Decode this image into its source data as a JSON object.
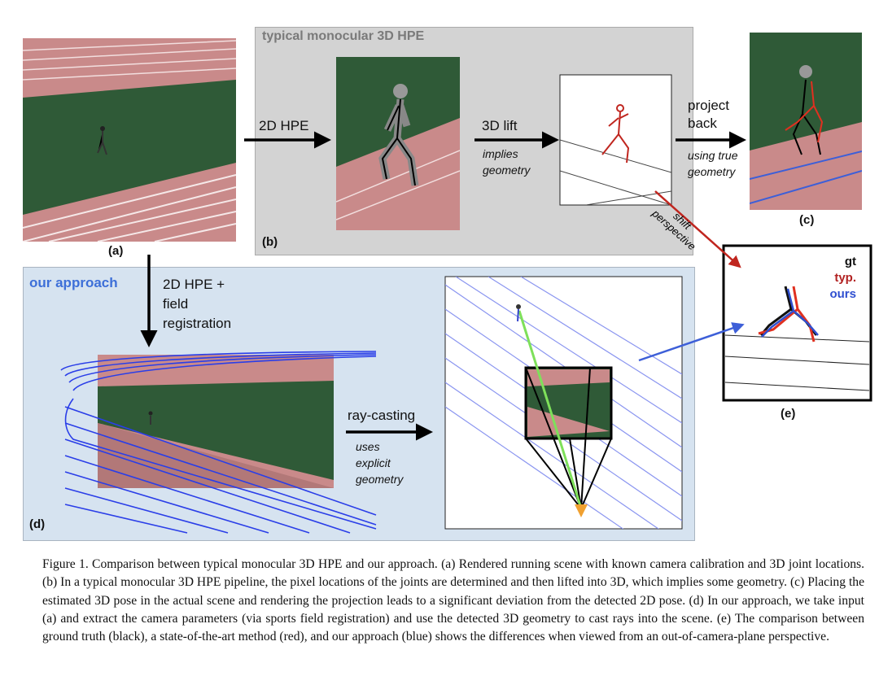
{
  "panels": {
    "a": {
      "label": "(a)"
    },
    "b": {
      "label": "(b)",
      "title": "typical monocular 3D HPE",
      "step1": "2D HPE",
      "step2": "3D lift",
      "step2_note": [
        "implies",
        "geometry"
      ]
    },
    "c": {
      "label": "(c)",
      "step": [
        "project",
        "back"
      ],
      "note": [
        "using true",
        "geometry"
      ]
    },
    "d": {
      "label": "(d)",
      "title": "our approach",
      "step1": [
        "2D HPE +",
        "field",
        "registration"
      ],
      "step2": "ray-casting",
      "step2_note": [
        "uses",
        "explicit",
        "geometry"
      ]
    },
    "e": {
      "label": "(e)",
      "legend": [
        {
          "text": "gt",
          "color": "#111111"
        },
        {
          "text": "typ.",
          "color": "#b22222"
        },
        {
          "text": "ours",
          "color": "#2f4fd0"
        }
      ],
      "shift_note": [
        "shift",
        "perspective"
      ]
    }
  },
  "colors": {
    "track": "#c98a8a",
    "grass": "#2f5a37",
    "panel_b": "#d3d3d3",
    "panel_d": "#d6e3f0",
    "accent_blue": "#3d5fd8",
    "accent_red": "#c0261f"
  },
  "caption": "Figure 1. Comparison between typical monocular 3D HPE and our approach. (a) Rendered running scene with known camera calibration and 3D joint locations. (b) In a typical monocular 3D HPE pipeline, the pixel locations of the joints are determined and then lifted into 3D, which implies some geometry. (c) Placing the estimated 3D pose in the actual scene and rendering the projection leads to a significant deviation from the detected 2D pose. (d) In our approach, we take input (a) and extract the camera parameters (via sports field registration) and use the detected 3D geometry to cast rays into the scene. (e) The comparison between ground truth (black), a state-of-the-art method (red), and our approach (blue) shows the differences when viewed from an out-of-camera-plane perspective."
}
